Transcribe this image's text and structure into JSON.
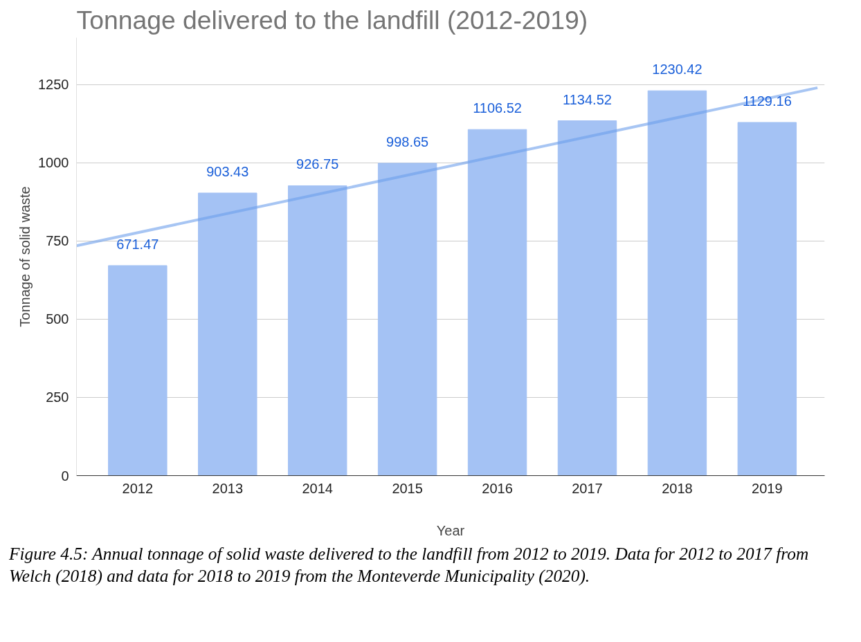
{
  "chart_data": {
    "type": "bar",
    "title": "Tonnage delivered to the landfill (2012-2019)",
    "xlabel": "Year",
    "ylabel": "Tonnage of solid waste",
    "x": [
      2012,
      2013,
      2014,
      2015,
      2016,
      2017,
      2018,
      2019
    ],
    "xlim": [
      2011.32,
      2019.64
    ],
    "xticks": [
      2012,
      2013,
      2014,
      2015,
      2016,
      2017,
      2018,
      2019
    ],
    "ylim": [
      0,
      1400
    ],
    "yticks": [
      0,
      250,
      500,
      750,
      1000,
      1250
    ],
    "grid": "y",
    "series": [
      {
        "color": "#a4c2f4",
        "values": [
          671.47,
          903.43,
          926.75,
          998.65,
          1106.52,
          1134.52,
          1230.42,
          1129.16
        ],
        "value_labels": [
          "671.47",
          "903.43",
          "926.75",
          "998.65",
          "1106.52",
          "1134.52",
          "1230.42",
          "1129.16"
        ]
      },
      {
        "type": "line",
        "color": "#6d9eeb",
        "x": [
          2011.32,
          2019.56
        ],
        "values": [
          735,
          1240
        ]
      }
    ],
    "annotations": [
      "Figure 4.5: Annual tonnage of solid waste delivered to the landfill from 2012 to 2019. Data for 2012 to 2017 from Welch (2018) and data for 2018 to 2019 from the Monteverde Municipality (2020)."
    ]
  }
}
